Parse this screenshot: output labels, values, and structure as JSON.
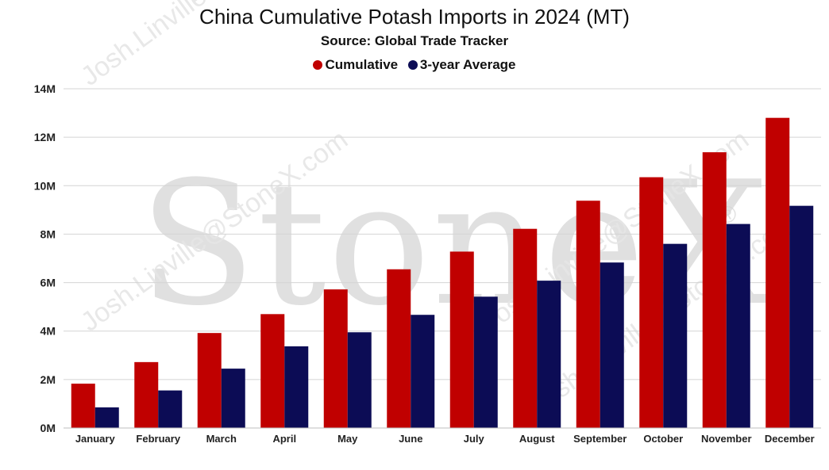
{
  "watermark": {
    "brand": "StoneX",
    "registered": "®",
    "user": "Josh.Linville@StoneX.com"
  },
  "colors": {
    "cumulative": "#c00000",
    "average": "#0c0c55",
    "grid": "#d4d4d4"
  },
  "chart_data": {
    "type": "bar",
    "title": "China Cumulative Potash Imports in 2024 (MT)",
    "subtitle": "Source: Global Trade Tracker",
    "legend_position": "top",
    "grid": true,
    "categories": [
      "January",
      "February",
      "March",
      "April",
      "May",
      "June",
      "July",
      "August",
      "September",
      "October",
      "November",
      "December"
    ],
    "series": [
      {
        "name": "Cumulative",
        "values": [
          1.83,
          2.72,
          3.92,
          4.7,
          5.72,
          6.55,
          7.28,
          8.22,
          9.38,
          10.35,
          11.38,
          12.8
        ]
      },
      {
        "name": "3-year Average",
        "values": [
          0.85,
          1.55,
          2.45,
          3.37,
          3.95,
          4.67,
          5.42,
          6.08,
          6.83,
          7.6,
          8.42,
          9.17
        ]
      }
    ],
    "ylim": [
      0,
      14
    ],
    "yticks": [
      {
        "value": 0,
        "label": "0M"
      },
      {
        "value": 2,
        "label": "2M"
      },
      {
        "value": 4,
        "label": "4M"
      },
      {
        "value": 6,
        "label": "6M"
      },
      {
        "value": 8,
        "label": "8M"
      },
      {
        "value": 10,
        "label": "10M"
      },
      {
        "value": 12,
        "label": "12M"
      },
      {
        "value": 14,
        "label": "14M"
      }
    ]
  }
}
